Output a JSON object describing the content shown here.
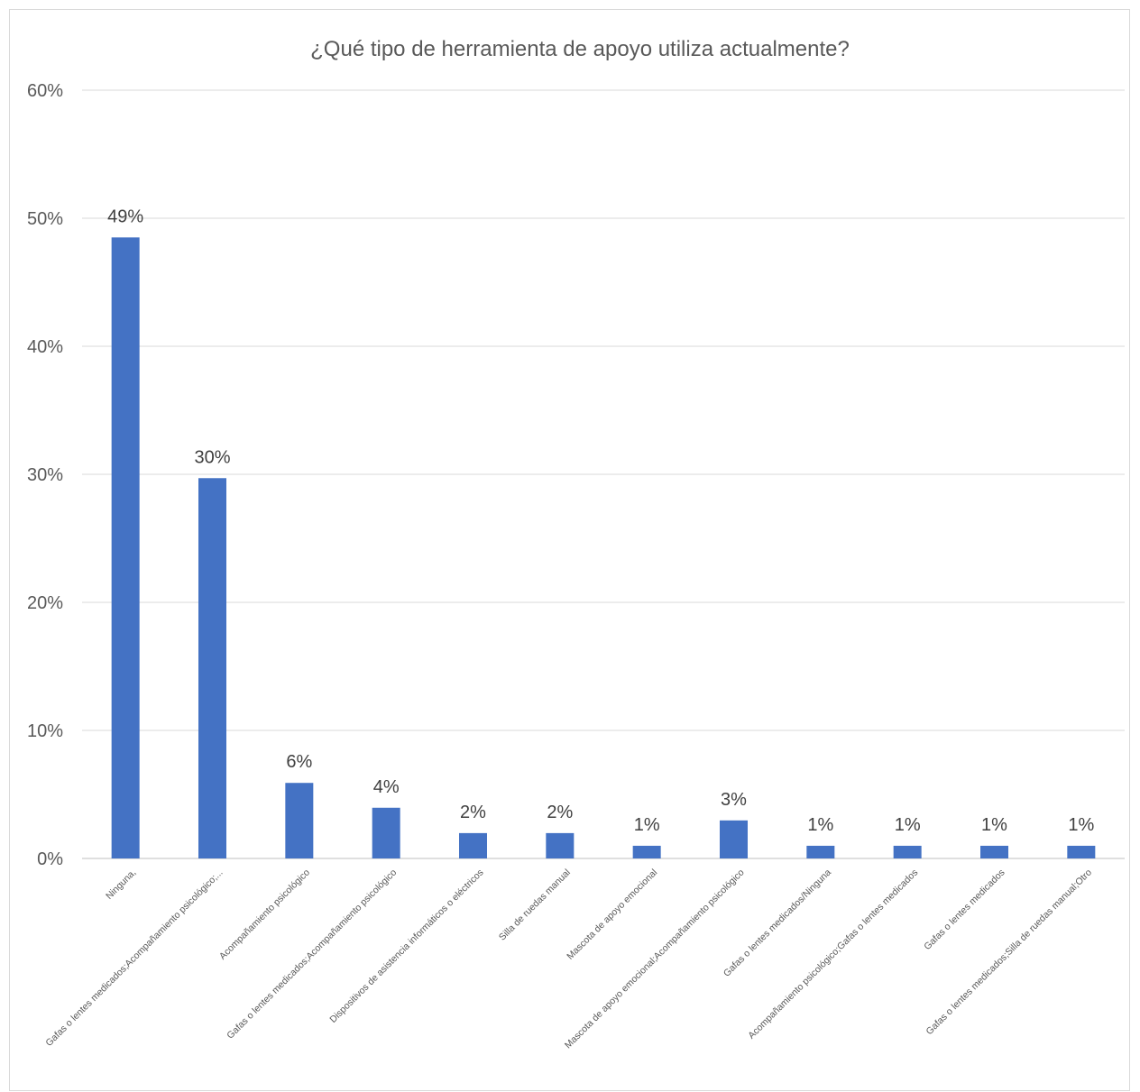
{
  "chart_data": {
    "type": "bar",
    "title": "¿Qué tipo de herramienta de apoyo utiliza actualmente?",
    "xlabel": "",
    "ylabel": "",
    "ylim": [
      0,
      60
    ],
    "y_ticks": [
      "0%",
      "10%",
      "20%",
      "30%",
      "40%",
      "50%",
      "60%"
    ],
    "grid": true,
    "bar_color": "#4472C4",
    "categories": [
      "Ninguna,",
      "Gafas o lentes medicados;Acompañamiento psicológico;...",
      "Acompañamiento psicológico",
      "Gafas o lentes medicados;Acompañamiento psicológico",
      "Dispositivos de asistencia informáticos o eléctricos",
      "Silla de ruedas manual",
      "Mascota de apoyo emocional",
      "Mascota de apoyo emocional;Acompañamiento psicológico",
      "Gafas o lentes medicados/Ninguna",
      "Acompañamiento psicológico;Gafas o lentes medicados",
      "Gafas o lentes medicados",
      "Gafas o lentes medicados;Silla de ruedas manual;Otro"
    ],
    "values": [
      48.5,
      29.7,
      5.9,
      3.96,
      1.98,
      1.98,
      0.99,
      2.97,
      0.99,
      0.99,
      0.99,
      0.99
    ],
    "data_labels": [
      "49%",
      "30%",
      "6%",
      "4%",
      "2%",
      "2%",
      "1%",
      "3%",
      "1%",
      "1%",
      "1%",
      "1%"
    ]
  }
}
